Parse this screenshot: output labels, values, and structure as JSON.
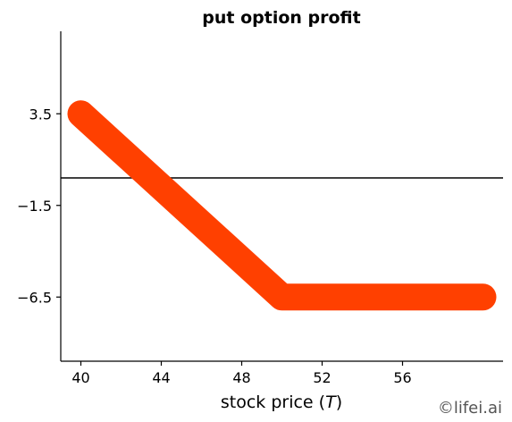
{
  "chart_data": {
    "type": "line",
    "title": "put option profit",
    "xlabel": "stock price (T)",
    "xlabel_parts": {
      "text": "stock price (",
      "var": "T",
      "close": ")"
    },
    "ylabel": "",
    "xlim": [
      39,
      61
    ],
    "ylim": [
      -10,
      8
    ],
    "xticks": [
      40,
      44,
      48,
      52,
      56
    ],
    "yticks": [
      3.5,
      -1.5,
      -6.5
    ],
    "ytick_labels": [
      "3.5",
      "−1.5",
      "−6.5"
    ],
    "grid": false,
    "reference_line_y": 0,
    "series": [
      {
        "color": "#ff4000",
        "x": [
          40,
          50,
          60
        ],
        "y": [
          3.5,
          -6.5,
          -6.5
        ]
      }
    ]
  },
  "watermark": "©lifei.ai"
}
